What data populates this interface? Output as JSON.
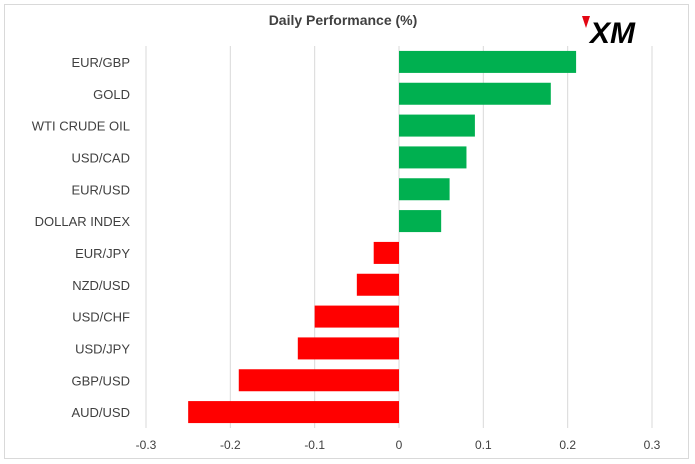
{
  "logo": {
    "text": "XM"
  },
  "chart_data": {
    "type": "bar",
    "orientation": "horizontal",
    "title": "Daily Performance (%)",
    "categories": [
      "EUR/GBP",
      "GOLD",
      "WTI CRUDE OIL",
      "USD/CAD",
      "EUR/USD",
      "DOLLAR INDEX",
      "EUR/JPY",
      "NZD/USD",
      "USD/CHF",
      "USD/JPY",
      "GBP/USD",
      "AUD/USD"
    ],
    "values": [
      0.21,
      0.18,
      0.09,
      0.08,
      0.06,
      0.05,
      -0.03,
      -0.05,
      -0.1,
      -0.12,
      -0.19,
      -0.25
    ],
    "xlim": [
      -0.3,
      0.3
    ],
    "xticks": [
      -0.3,
      -0.2,
      -0.1,
      0,
      0.1,
      0.2,
      0.3
    ],
    "xtick_labels": [
      "-0.3",
      "-0.2",
      "-0.1",
      "0",
      "0.1",
      "0.2",
      "0.3"
    ],
    "grid": true,
    "legend": "none",
    "colors": {
      "positive": "#00b050",
      "negative": "#ff0000",
      "grid": "#d9d9d9",
      "text": "#404040"
    }
  }
}
